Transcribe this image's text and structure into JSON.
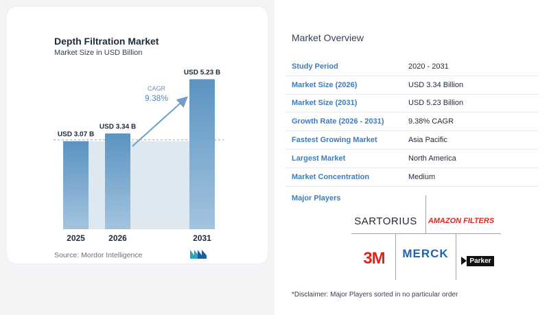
{
  "chart": {
    "title": "Depth Filtration Market",
    "subtitle": "Market Size in USD Billion",
    "source": "Source:  Mordor Intelligence"
  },
  "chart_data": {
    "type": "bar",
    "categories": [
      "2025",
      "2026",
      "2031"
    ],
    "values": [
      3.07,
      3.34,
      5.23
    ],
    "data_labels": [
      "USD 3.07 B",
      "USD 3.34 B",
      "USD 5.23 B"
    ],
    "cagr_label": "CAGR",
    "cagr_value": "9.38%",
    "ylim": [
      0,
      5.6
    ],
    "grid": false,
    "colors": {
      "bar_top": "#5b93c1",
      "bar_bottom": "#a3c4df",
      "shade": "#dde8f1",
      "arrow": "#6f9fc8",
      "reference_line": "#9ca3af"
    }
  },
  "overview": {
    "title": "Market Overview",
    "rows": [
      {
        "label": "Study Period",
        "value": "2020 - 2031"
      },
      {
        "label": "Market Size (2026)",
        "value": "USD 3.34 Billion"
      },
      {
        "label": "Market Size (2031)",
        "value": "USD 5.23 Billion"
      },
      {
        "label": "Growth Rate (2026 - 2031)",
        "value": "9.38% CAGR"
      },
      {
        "label": "Fastest Growing Market",
        "value": "Asia Pacific"
      },
      {
        "label": "Largest Market",
        "value": "North America"
      },
      {
        "label": "Market Concentration",
        "value": "Medium"
      }
    ]
  },
  "players": {
    "title": "Major Players",
    "names": [
      "SARTORIUS",
      "AMAZON FILTERS",
      "3M",
      "MERCK",
      "Parker"
    ]
  },
  "disclaimer": "*Disclaimer: Major Players sorted in no particular order",
  "theme": {
    "label_color": "#3b7dbd",
    "red_logo": "#e0251b",
    "merck_blue": "#1e63b3"
  }
}
